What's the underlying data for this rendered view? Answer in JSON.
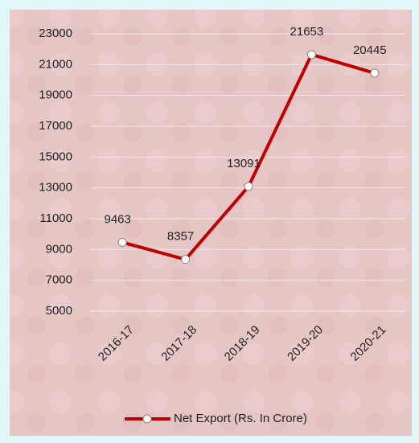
{
  "chart_data": {
    "type": "line",
    "categories": [
      "2016-17",
      "2017-18",
      "2018-19",
      "2019-20",
      "2020-21"
    ],
    "series": [
      {
        "name": "Net Export (Rs. In Crore)",
        "color": "#c00000",
        "values": [
          9463,
          8357,
          13091,
          21653,
          20445
        ]
      }
    ],
    "ylim": [
      5000,
      23000
    ],
    "yticks": [
      5000,
      7000,
      9000,
      11000,
      13000,
      15000,
      17000,
      19000,
      21000,
      23000
    ],
    "grid": true,
    "legend": "bottom"
  }
}
